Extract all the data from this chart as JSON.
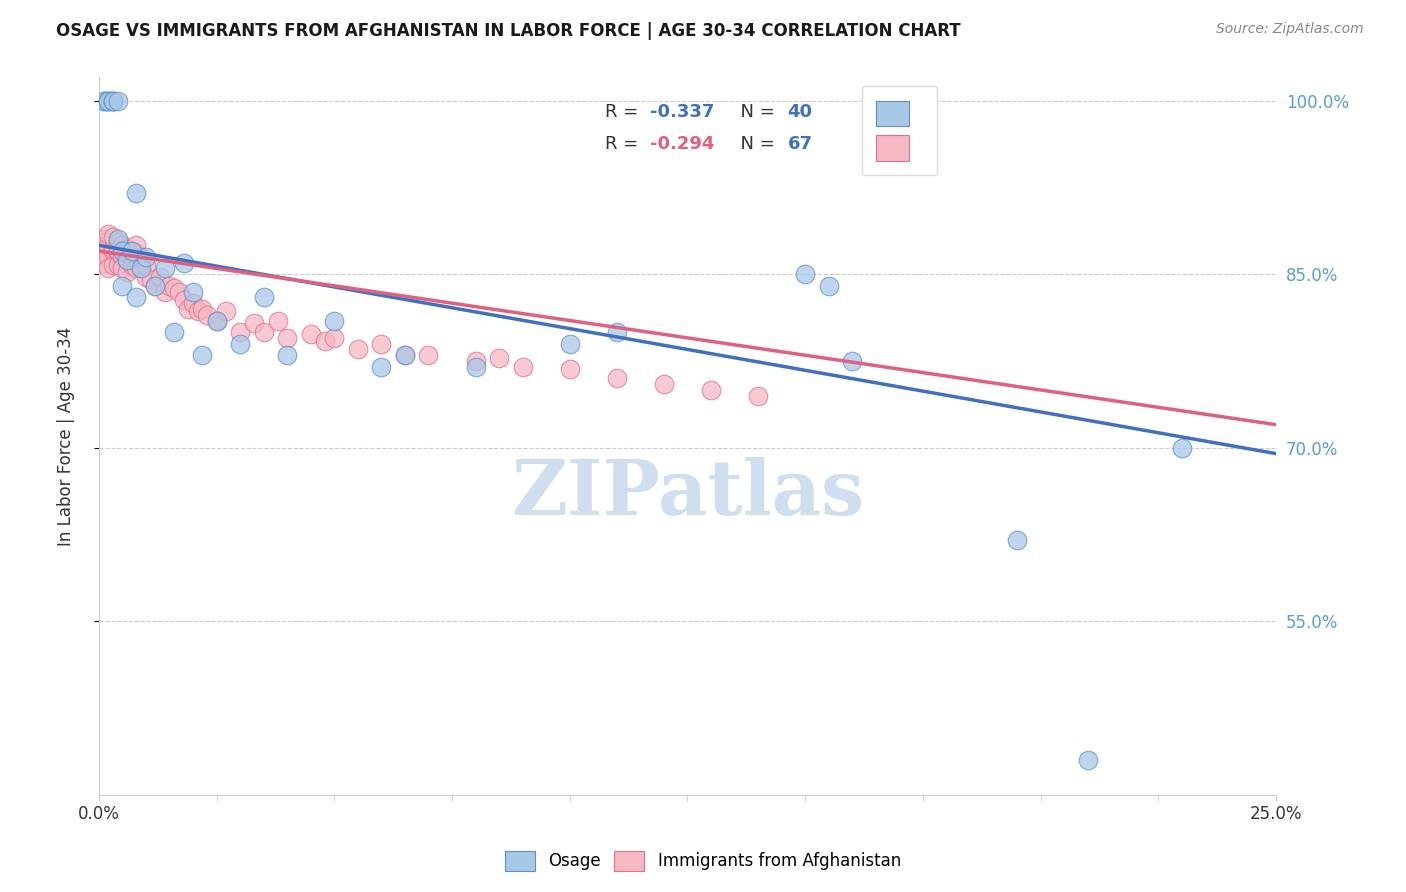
{
  "title": "OSAGE VS IMMIGRANTS FROM AFGHANISTAN IN LABOR FORCE | AGE 30-34 CORRELATION CHART",
  "source": "Source: ZipAtlas.com",
  "ylabel": "In Labor Force | Age 30-34",
  "xlim": [
    0.0,
    0.25
  ],
  "ylim": [
    0.4,
    1.02
  ],
  "ytick_labels": [
    "100.0%",
    "85.0%",
    "70.0%",
    "55.0%"
  ],
  "ytick_positions": [
    1.0,
    0.85,
    0.7,
    0.55
  ],
  "legend_r1": "-0.337",
  "legend_n1": "40",
  "legend_r2": "-0.294",
  "legend_n2": "67",
  "blue_fill": "#A8C8E8",
  "pink_fill": "#F5B8C4",
  "blue_edge": "#6090C8",
  "pink_edge": "#E07090",
  "line_blue": "#4070C0",
  "line_pink": "#E06080",
  "watermark": "ZIPatlas",
  "watermark_color": "#D0DFF0",
  "text_color": "#333333",
  "grid_color": "#CCCCCC",
  "axis_label_color": "#5B9BD5",
  "osage_x": [
    0.001,
    0.001,
    0.002,
    0.002,
    0.002,
    0.003,
    0.003,
    0.003,
    0.004,
    0.004,
    0.005,
    0.005,
    0.006,
    0.007,
    0.008,
    0.008,
    0.009,
    0.01,
    0.012,
    0.014,
    0.016,
    0.018,
    0.02,
    0.022,
    0.025,
    0.03,
    0.035,
    0.04,
    0.05,
    0.06,
    0.065,
    0.08,
    0.1,
    0.11,
    0.15,
    0.155,
    0.16,
    0.195,
    0.21,
    0.23
  ],
  "osage_y": [
    1.0,
    1.0,
    1.0,
    1.0,
    1.0,
    1.0,
    1.0,
    1.0,
    1.0,
    0.88,
    0.87,
    0.84,
    0.862,
    0.87,
    0.83,
    0.92,
    0.855,
    0.865,
    0.84,
    0.855,
    0.8,
    0.86,
    0.835,
    0.78,
    0.81,
    0.79,
    0.83,
    0.78,
    0.81,
    0.77,
    0.78,
    0.77,
    0.79,
    0.8,
    0.85,
    0.84,
    0.775,
    0.62,
    0.43,
    0.7
  ],
  "afg_x": [
    0.001,
    0.001,
    0.001,
    0.001,
    0.002,
    0.002,
    0.002,
    0.002,
    0.003,
    0.003,
    0.003,
    0.003,
    0.004,
    0.004,
    0.004,
    0.004,
    0.005,
    0.005,
    0.005,
    0.006,
    0.006,
    0.006,
    0.007,
    0.007,
    0.007,
    0.008,
    0.008,
    0.008,
    0.009,
    0.009,
    0.01,
    0.01,
    0.011,
    0.012,
    0.013,
    0.014,
    0.015,
    0.016,
    0.017,
    0.018,
    0.019,
    0.02,
    0.021,
    0.022,
    0.023,
    0.025,
    0.027,
    0.03,
    0.033,
    0.035,
    0.038,
    0.04,
    0.045,
    0.048,
    0.05,
    0.055,
    0.06,
    0.065,
    0.07,
    0.08,
    0.085,
    0.09,
    0.1,
    0.11,
    0.12,
    0.13,
    0.14
  ],
  "afg_y": [
    0.88,
    0.87,
    0.86,
    0.878,
    0.875,
    0.865,
    0.855,
    0.885,
    0.87,
    0.858,
    0.872,
    0.882,
    0.868,
    0.878,
    0.858,
    0.87,
    0.865,
    0.875,
    0.855,
    0.862,
    0.872,
    0.852,
    0.87,
    0.858,
    0.865,
    0.855,
    0.868,
    0.875,
    0.855,
    0.865,
    0.848,
    0.858,
    0.845,
    0.84,
    0.848,
    0.835,
    0.84,
    0.838,
    0.835,
    0.828,
    0.82,
    0.825,
    0.818,
    0.82,
    0.815,
    0.81,
    0.818,
    0.8,
    0.808,
    0.8,
    0.81,
    0.795,
    0.798,
    0.792,
    0.795,
    0.785,
    0.79,
    0.78,
    0.78,
    0.775,
    0.778,
    0.77,
    0.768,
    0.76,
    0.755,
    0.75,
    0.745
  ],
  "line_osage_x0": 0.0,
  "line_osage_y0": 0.875,
  "line_osage_x1": 0.25,
  "line_osage_y1": 0.695,
  "line_afg_x0": 0.0,
  "line_afg_y0": 0.87,
  "line_afg_x1": 0.25,
  "line_afg_y1": 0.72
}
